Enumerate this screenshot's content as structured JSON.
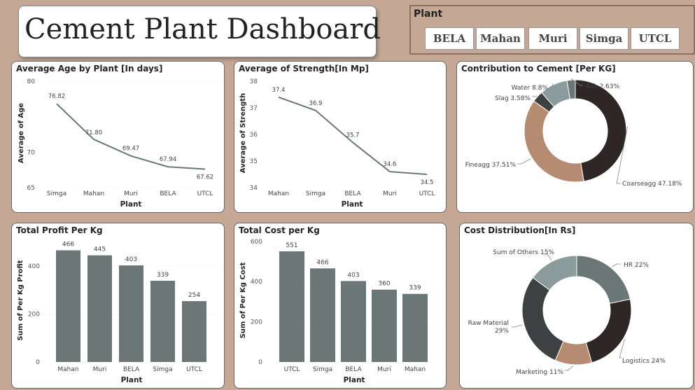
{
  "title": "Cement Plant Dashboard",
  "slicer": {
    "label": "Plant",
    "options": [
      "BELA",
      "Mahan",
      "Muri",
      "Simga",
      "UTCL"
    ]
  },
  "colors": {
    "bar": "#6b7676",
    "line": "#6b7676",
    "donut1": [
      "#2e2726",
      "#b58b72",
      "#3d4142",
      "#8b9a9a",
      "#6b7676"
    ],
    "donut2": [
      "#6b7676",
      "#2e2726",
      "#b58b72",
      "#3d4142",
      "#8b9a9a"
    ]
  },
  "cards": {
    "age_title": "Average Age by Plant [In days]",
    "strength_title": "Average of Strength[In Mp]",
    "contribution_title": "Contribution to Cement [Per KG]",
    "profit_title": "Total Profit Per Kg",
    "cost_title": "Total Cost per Kg",
    "costdist_title": "Cost Distribution[In Rs]"
  },
  "chart_data": [
    {
      "id": "age",
      "type": "line",
      "title": "Average Age by Plant [In days]",
      "xlabel": "Plant",
      "ylabel": "Average of Age",
      "categories": [
        "Simga",
        "Mahan",
        "Muri",
        "BELA",
        "UTCL"
      ],
      "values": [
        76.82,
        71.8,
        69.47,
        67.94,
        67.62
      ],
      "value_labels": [
        "76.82",
        "71.80",
        "69.47",
        "67.94",
        "67.62"
      ],
      "yticks": [
        65,
        70,
        75,
        80
      ],
      "ytick_labels": [
        "65",
        "70",
        "",
        "80"
      ],
      "ylim": [
        65,
        80
      ]
    },
    {
      "id": "strength",
      "type": "line",
      "title": "Average of Strength[In Mp]",
      "xlabel": "Plant",
      "ylabel": "Average of Strength",
      "categories": [
        "Mahan",
        "Simga",
        "BELA",
        "Muri",
        "UTCL"
      ],
      "values": [
        37.4,
        36.9,
        35.7,
        34.6,
        34.5
      ],
      "value_labels": [
        "37.4",
        "36.9",
        "35.7",
        "34.6",
        "34.5"
      ],
      "yticks": [
        34,
        35,
        36,
        37,
        38
      ],
      "ytick_labels": [
        "34",
        "35",
        "36",
        "37",
        "38"
      ],
      "ylim": [
        34,
        38
      ]
    },
    {
      "id": "contribution",
      "type": "pie",
      "title": "Contribution to Cement [Per KG]",
      "labels": [
        "Coarseagg",
        "Fineagg",
        "Slag",
        "Water",
        "Ash"
      ],
      "values": [
        47.18,
        37.51,
        3.58,
        8.8,
        2.63
      ],
      "value_labels": [
        "Coarseagg 47.18%",
        "Fineagg 37.51%",
        "Slag 3.58%",
        "Water 8.8%",
        "Ash 2.63%"
      ]
    },
    {
      "id": "profit",
      "type": "bar",
      "title": "Total Profit Per Kg",
      "xlabel": "Plant",
      "ylabel": "Sum of Per Kg Profit",
      "categories": [
        "Mahan",
        "Muri",
        "BELA",
        "Simga",
        "UTCL"
      ],
      "values": [
        466,
        445,
        403,
        339,
        254
      ],
      "yticks": [
        0,
        200,
        400
      ],
      "ylim": [
        0,
        520
      ]
    },
    {
      "id": "cost",
      "type": "bar",
      "title": "Total Cost per Kg",
      "xlabel": "Plant",
      "ylabel": "Sum of Per Kg Cost",
      "categories": [
        "UTCL",
        "Simga",
        "BELA",
        "Muri",
        "Mahan"
      ],
      "values": [
        551,
        466,
        403,
        360,
        339
      ],
      "yticks": [
        0,
        200,
        400,
        600
      ],
      "ylim": [
        0,
        610
      ]
    },
    {
      "id": "costdist",
      "type": "pie",
      "title": "Cost Distribution[In Rs]",
      "labels": [
        "HR",
        "Logistics",
        "Marketing",
        "Raw Material",
        "Sum of Others"
      ],
      "values": [
        22,
        24,
        11,
        29,
        15
      ],
      "value_labels": [
        "HR 22%",
        "Logistics 24%",
        "Marketing 11%",
        "Raw Material\n29%",
        "Sum of Others 15%"
      ]
    }
  ]
}
